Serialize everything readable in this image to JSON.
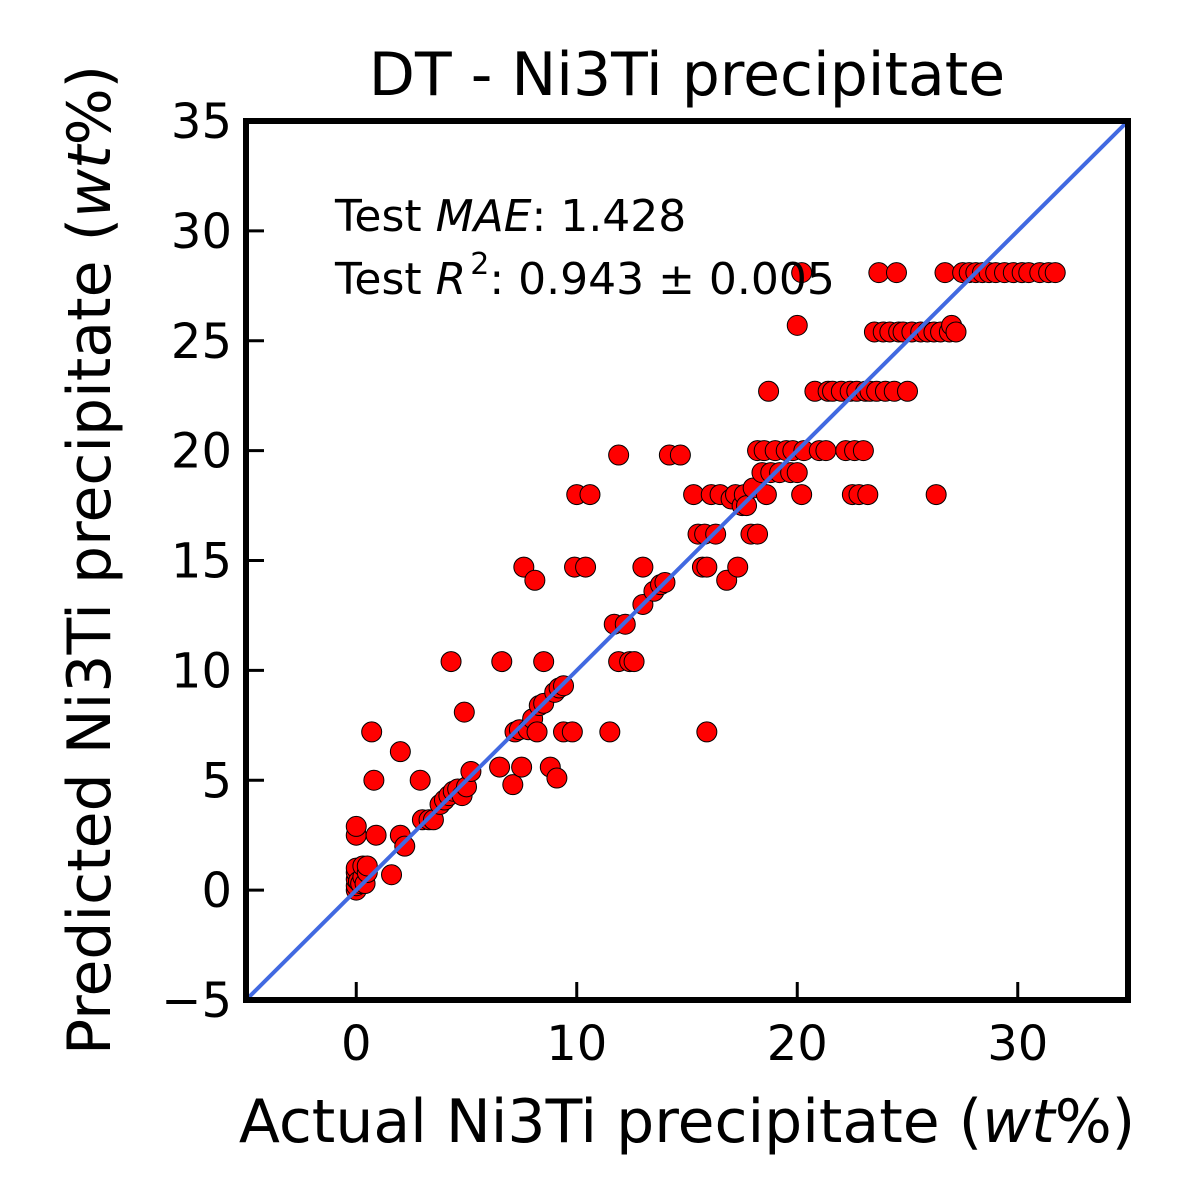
{
  "chart_data": {
    "type": "scatter",
    "title": "DT - Ni3Ti precipitate",
    "xlabel": {
      "pre": "Actual Ni3Ti precipitate (",
      "em": "wt",
      "post": "%)"
    },
    "ylabel": {
      "pre": "Predicted Ni3Ti precipitate (",
      "em": "wt",
      "post": "%)"
    },
    "xlim": [
      -5,
      35
    ],
    "ylim": [
      -5,
      35
    ],
    "xticks": [
      0,
      10,
      20,
      30
    ],
    "xtick_labels": [
      "0",
      "10",
      "20",
      "30"
    ],
    "yticks": [
      -5,
      0,
      5,
      10,
      15,
      20,
      25,
      30,
      35
    ],
    "ytick_labels": [
      "−5",
      "0",
      "5",
      "10",
      "15",
      "20",
      "25",
      "30",
      "35"
    ],
    "grid": false,
    "annotations": {
      "mae": {
        "pre": "Test ",
        "em": "MAE",
        "post": ": 1.428"
      },
      "r2": {
        "pre": "Test ",
        "em": "R",
        "sup": "2",
        "post": ": 0.943 ± 0.005"
      }
    },
    "colors": {
      "points": "#ff0000",
      "point_edge": "#000000",
      "identity_line": "#4169e1"
    },
    "identity_line": {
      "from": [
        -5,
        -5
      ],
      "to": [
        35,
        35
      ]
    },
    "series": [
      {
        "points": [
          [
            0,
            0
          ],
          [
            0,
            0.2
          ],
          [
            0,
            0.5
          ],
          [
            0,
            0.8
          ],
          [
            0,
            1.0
          ],
          [
            0,
            2.5
          ],
          [
            0,
            2.9
          ],
          [
            0.1,
            0.4
          ],
          [
            0.2,
            0.3
          ],
          [
            0.3,
            0.6
          ],
          [
            0.3,
            1.1
          ],
          [
            0.4,
            0.3
          ],
          [
            0.5,
            0.8
          ],
          [
            0.5,
            1.1
          ],
          [
            0.7,
            7.2
          ],
          [
            0.8,
            5.0
          ],
          [
            0.9,
            2.5
          ],
          [
            1.6,
            0.7
          ],
          [
            2.0,
            6.3
          ],
          [
            2.0,
            2.5
          ],
          [
            2.2,
            2.0
          ],
          [
            2.9,
            5.0
          ],
          [
            3.0,
            3.2
          ],
          [
            3.3,
            3.2
          ],
          [
            3.5,
            3.2
          ],
          [
            3.8,
            3.9
          ],
          [
            4.0,
            4.1
          ],
          [
            4.2,
            4.3
          ],
          [
            4.4,
            4.5
          ],
          [
            4.3,
            10.4
          ],
          [
            4.6,
            4.6
          ],
          [
            4.8,
            4.3
          ],
          [
            4.9,
            8.1
          ],
          [
            5.0,
            4.7
          ],
          [
            5.2,
            5.4
          ],
          [
            6.5,
            5.6
          ],
          [
            6.6,
            10.4
          ],
          [
            7.1,
            4.8
          ],
          [
            7.2,
            7.2
          ],
          [
            7.4,
            7.3
          ],
          [
            7.5,
            5.6
          ],
          [
            7.6,
            14.7
          ],
          [
            7.8,
            7.3
          ],
          [
            8.0,
            7.8
          ],
          [
            8.1,
            14.1
          ],
          [
            8.2,
            7.2
          ],
          [
            8.3,
            8.4
          ],
          [
            8.5,
            10.4
          ],
          [
            8.5,
            8.5
          ],
          [
            8.8,
            5.6
          ],
          [
            9.0,
            9.0
          ],
          [
            9.1,
            5.1
          ],
          [
            9.2,
            9.2
          ],
          [
            9.4,
            9.3
          ],
          [
            9.4,
            7.2
          ],
          [
            9.8,
            7.2
          ],
          [
            9.9,
            14.7
          ],
          [
            10.0,
            18.0
          ],
          [
            10.4,
            14.7
          ],
          [
            10.6,
            18.0
          ],
          [
            11.5,
            7.2
          ],
          [
            11.7,
            12.1
          ],
          [
            11.9,
            10.4
          ],
          [
            11.9,
            19.8
          ],
          [
            12.2,
            12.1
          ],
          [
            12.4,
            10.4
          ],
          [
            12.6,
            10.4
          ],
          [
            13.0,
            13.0
          ],
          [
            13.0,
            14.7
          ],
          [
            13.5,
            13.6
          ],
          [
            13.8,
            13.9
          ],
          [
            14.0,
            14.0
          ],
          [
            14.2,
            19.8
          ],
          [
            14.7,
            19.8
          ],
          [
            15.3,
            18.0
          ],
          [
            15.5,
            16.2
          ],
          [
            15.7,
            14.7
          ],
          [
            15.8,
            16.2
          ],
          [
            15.9,
            14.7
          ],
          [
            15.9,
            7.2
          ],
          [
            16.1,
            18.0
          ],
          [
            16.3,
            16.2
          ],
          [
            16.5,
            18.0
          ],
          [
            16.8,
            14.1
          ],
          [
            17.0,
            17.8
          ],
          [
            17.2,
            18.0
          ],
          [
            17.3,
            14.7
          ],
          [
            17.5,
            17.5
          ],
          [
            17.6,
            18.0
          ],
          [
            17.7,
            17.5
          ],
          [
            17.9,
            16.2
          ],
          [
            18.0,
            18.3
          ],
          [
            18.2,
            16.2
          ],
          [
            18.2,
            20.0
          ],
          [
            18.4,
            19.0
          ],
          [
            18.5,
            20.0
          ],
          [
            18.6,
            18.0
          ],
          [
            18.7,
            22.7
          ],
          [
            18.8,
            19.0
          ],
          [
            19.0,
            20.0
          ],
          [
            19.2,
            19.0
          ],
          [
            19.5,
            20.0
          ],
          [
            19.7,
            19.0
          ],
          [
            19.8,
            20.0
          ],
          [
            20.0,
            19.0
          ],
          [
            20.0,
            25.7
          ],
          [
            20.2,
            18.0
          ],
          [
            20.3,
            20.0
          ],
          [
            20.2,
            28.1
          ],
          [
            20.8,
            22.7
          ],
          [
            21.0,
            20.0
          ],
          [
            21.3,
            20.0
          ],
          [
            21.4,
            22.7
          ],
          [
            21.6,
            22.7
          ],
          [
            22.0,
            22.7
          ],
          [
            22.2,
            20.0
          ],
          [
            22.4,
            22.7
          ],
          [
            22.5,
            18.0
          ],
          [
            22.6,
            20.0
          ],
          [
            22.7,
            22.7
          ],
          [
            22.8,
            18.0
          ],
          [
            23.0,
            20.0
          ],
          [
            23.2,
            18.0
          ],
          [
            23.1,
            22.7
          ],
          [
            23.3,
            22.7
          ],
          [
            23.5,
            25.4
          ],
          [
            23.6,
            22.7
          ],
          [
            23.7,
            28.1
          ],
          [
            23.9,
            25.4
          ],
          [
            24.0,
            22.7
          ],
          [
            24.2,
            25.4
          ],
          [
            24.4,
            22.7
          ],
          [
            24.5,
            28.1
          ],
          [
            24.6,
            25.4
          ],
          [
            24.8,
            25.4
          ],
          [
            25.0,
            22.7
          ],
          [
            25.2,
            25.4
          ],
          [
            25.6,
            25.4
          ],
          [
            25.9,
            25.4
          ],
          [
            26.2,
            25.4
          ],
          [
            26.3,
            18.0
          ],
          [
            26.5,
            25.4
          ],
          [
            26.7,
            28.1
          ],
          [
            26.9,
            25.4
          ],
          [
            27.0,
            25.7
          ],
          [
            27.2,
            25.4
          ],
          [
            27.5,
            28.1
          ],
          [
            27.8,
            28.1
          ],
          [
            28.1,
            28.1
          ],
          [
            28.4,
            28.1
          ],
          [
            28.7,
            28.1
          ],
          [
            29.0,
            28.1
          ],
          [
            29.4,
            28.1
          ],
          [
            29.8,
            28.1
          ],
          [
            30.2,
            28.1
          ],
          [
            30.5,
            28.1
          ],
          [
            31.0,
            28.1
          ],
          [
            31.4,
            28.1
          ],
          [
            31.7,
            28.1
          ]
        ]
      }
    ]
  }
}
